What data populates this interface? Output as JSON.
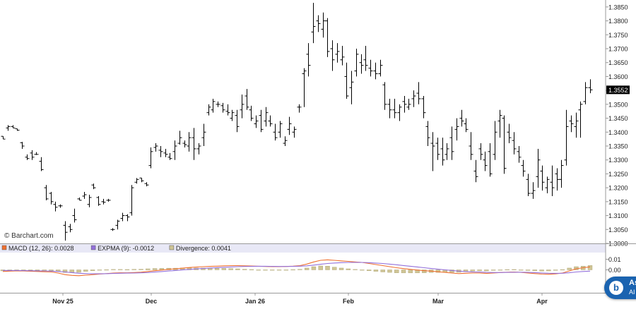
{
  "watermark": "© Barchart.com",
  "assistant_badge": {
    "line1": "As",
    "line2": "AI"
  },
  "chart_data": [
    {
      "type": "ohlc",
      "x_axis": {
        "labels": [
          "Nov 25",
          "Dec",
          "Jan 26",
          "Feb",
          "Mar",
          "Apr"
        ]
      },
      "y_axis": {
        "range": [
          1.3,
          1.3875
        ],
        "ticks": [
          "1.3000",
          "1.3050",
          "1.3100",
          "1.3150",
          "1.3200",
          "1.3250",
          "1.3300",
          "1.3350",
          "1.3400",
          "1.3450",
          "1.3500",
          "1.3550",
          "1.3600",
          "1.3650",
          "1.3700",
          "1.3750",
          "1.3800",
          "1.3850"
        ]
      },
      "last_price": {
        "value": 1.3552,
        "label": "1.3552"
      },
      "grid": false,
      "bars": [
        [
          1.3385,
          1.3385,
          1.3375,
          1.3375
        ],
        [
          1.3415,
          1.3425,
          1.3405,
          1.342
        ],
        [
          1.342,
          1.3425,
          1.3415,
          1.3415
        ],
        [
          1.3412,
          1.3412,
          1.3405,
          1.3407
        ],
        [
          1.3362,
          1.3365,
          1.334,
          1.335
        ],
        [
          1.331,
          1.332,
          1.33,
          1.3305
        ],
        [
          1.3325,
          1.3335,
          1.33,
          1.331
        ],
        [
          1.332,
          1.3328,
          1.3318,
          1.332
        ],
        [
          1.3295,
          1.331,
          1.326,
          1.3265
        ],
        [
          1.32,
          1.321,
          1.3155,
          1.316
        ],
        [
          1.318,
          1.3185,
          1.314,
          1.315
        ],
        [
          1.314,
          1.315,
          1.3115,
          1.313
        ],
        [
          1.3135,
          1.314,
          1.3128,
          1.3135
        ],
        [
          1.3065,
          1.308,
          1.301,
          1.304
        ],
        [
          1.306,
          1.307,
          1.304,
          1.305
        ],
        [
          1.31,
          1.3125,
          1.3075,
          1.3085
        ],
        [
          1.316,
          1.3165,
          1.3155,
          1.3155
        ],
        [
          1.317,
          1.3185,
          1.316,
          1.3175
        ],
        [
          1.314,
          1.3175,
          1.313,
          1.3165
        ],
        [
          1.321,
          1.3215,
          1.3195,
          1.32
        ],
        [
          1.3165,
          1.317,
          1.3135,
          1.314
        ],
        [
          1.315,
          1.316,
          1.314,
          1.3148
        ],
        [
          1.3155,
          1.316,
          1.315,
          1.3155
        ],
        [
          1.305,
          1.3055,
          1.3045,
          1.305
        ],
        [
          1.3065,
          1.3085,
          1.305,
          1.308
        ],
        [
          1.309,
          1.311,
          1.308,
          1.31
        ],
        [
          1.31,
          1.3105,
          1.308,
          1.3095
        ],
        [
          1.311,
          1.321,
          1.31,
          1.32
        ],
        [
          1.322,
          1.3235,
          1.3215,
          1.323
        ],
        [
          1.3235,
          1.3235,
          1.322,
          1.3225
        ],
        [
          1.3215,
          1.322,
          1.3205,
          1.321
        ],
        [
          1.328,
          1.3345,
          1.327,
          1.333
        ],
        [
          1.3345,
          1.336,
          1.333,
          1.335
        ],
        [
          1.3335,
          1.335,
          1.331,
          1.333
        ],
        [
          1.3325,
          1.334,
          1.331,
          1.332
        ],
        [
          1.331,
          1.3325,
          1.33,
          1.3305
        ],
        [
          1.333,
          1.337,
          1.33,
          1.335
        ],
        [
          1.336,
          1.3405,
          1.3355,
          1.338
        ],
        [
          1.336,
          1.337,
          1.3345,
          1.3355
        ],
        [
          1.335,
          1.34,
          1.333,
          1.338
        ],
        [
          1.338,
          1.3415,
          1.33,
          1.334
        ],
        [
          1.334,
          1.336,
          1.332,
          1.335
        ],
        [
          1.338,
          1.343,
          1.335,
          1.34
        ],
        [
          1.347,
          1.35,
          1.346,
          1.349
        ],
        [
          1.348,
          1.352,
          1.347,
          1.351
        ],
        [
          1.35,
          1.351,
          1.349,
          1.35
        ],
        [
          1.3495,
          1.3505,
          1.347,
          1.348
        ],
        [
          1.3475,
          1.35,
          1.346,
          1.347
        ],
        [
          1.345,
          1.348,
          1.344,
          1.347
        ],
        [
          1.346,
          1.348,
          1.34,
          1.342
        ],
        [
          1.348,
          1.3535,
          1.345,
          1.35
        ],
        [
          1.353,
          1.3555,
          1.348,
          1.349
        ],
        [
          1.348,
          1.3495,
          1.344,
          1.345
        ],
        [
          1.343,
          1.346,
          1.3415,
          1.344
        ],
        [
          1.346,
          1.348,
          1.34,
          1.341
        ],
        [
          1.344,
          1.349,
          1.342,
          1.347
        ],
        [
          1.344,
          1.346,
          1.342,
          1.343
        ],
        [
          1.34,
          1.343,
          1.337,
          1.338
        ],
        [
          1.34,
          1.344,
          1.338,
          1.343
        ],
        [
          1.336,
          1.3385,
          1.335,
          1.337
        ],
        [
          1.341,
          1.3455,
          1.339,
          1.343
        ],
        [
          1.34,
          1.342,
          1.338,
          1.341
        ],
        [
          1.349,
          1.35,
          1.347,
          1.349
        ],
        [
          1.361,
          1.363,
          1.349,
          1.362
        ],
        [
          1.368,
          1.372,
          1.36,
          1.364
        ],
        [
          1.376,
          1.3865,
          1.372,
          1.378
        ],
        [
          1.38,
          1.382,
          1.376,
          1.379
        ],
        [
          1.377,
          1.383,
          1.374,
          1.38
        ],
        [
          1.38,
          1.381,
          1.367,
          1.369
        ],
        [
          1.37,
          1.373,
          1.362,
          1.366
        ],
        [
          1.368,
          1.372,
          1.365,
          1.369
        ],
        [
          1.366,
          1.371,
          1.364,
          1.367
        ],
        [
          1.36,
          1.365,
          1.352,
          1.353
        ],
        [
          1.356,
          1.362,
          1.35,
          1.358
        ],
        [
          1.362,
          1.37,
          1.36,
          1.368
        ],
        [
          1.365,
          1.368,
          1.361,
          1.364
        ],
        [
          1.366,
          1.371,
          1.362,
          1.364
        ],
        [
          1.363,
          1.366,
          1.36,
          1.362
        ],
        [
          1.362,
          1.365,
          1.359,
          1.361
        ],
        [
          1.361,
          1.366,
          1.36,
          1.364
        ],
        [
          1.357,
          1.358,
          1.348,
          1.35
        ],
        [
          1.35,
          1.352,
          1.345,
          1.348
        ],
        [
          1.348,
          1.352,
          1.345,
          1.347
        ],
        [
          1.347,
          1.35,
          1.344,
          1.349
        ],
        [
          1.351,
          1.353,
          1.347,
          1.35
        ],
        [
          1.349,
          1.352,
          1.348,
          1.35
        ],
        [
          1.352,
          1.355,
          1.349,
          1.353
        ],
        [
          1.354,
          1.358,
          1.35,
          1.352
        ],
        [
          1.352,
          1.353,
          1.345,
          1.347
        ],
        [
          1.342,
          1.344,
          1.335,
          1.338
        ],
        [
          1.336,
          1.34,
          1.326,
          1.335
        ],
        [
          1.336,
          1.338,
          1.33,
          1.332
        ],
        [
          1.334,
          1.338,
          1.328,
          1.33
        ],
        [
          1.332,
          1.336,
          1.33,
          1.334
        ],
        [
          1.338,
          1.342,
          1.33,
          1.333
        ],
        [
          1.341,
          1.345,
          1.337,
          1.342
        ],
        [
          1.345,
          1.348,
          1.342,
          1.344
        ],
        [
          1.343,
          1.345,
          1.34,
          1.341
        ],
        [
          1.335,
          1.34,
          1.33,
          1.332
        ],
        [
          1.326,
          1.33,
          1.322,
          1.324
        ],
        [
          1.334,
          1.336,
          1.33,
          1.332
        ],
        [
          1.33,
          1.333,
          1.326,
          1.328
        ],
        [
          1.333,
          1.336,
          1.324,
          1.325
        ],
        [
          1.332,
          1.344,
          1.33,
          1.34
        ],
        [
          1.344,
          1.348,
          1.338,
          1.346
        ],
        [
          1.345,
          1.346,
          1.325,
          1.327
        ],
        [
          1.34,
          1.343,
          1.336,
          1.338
        ],
        [
          1.337,
          1.34,
          1.332,
          1.334
        ],
        [
          1.333,
          1.335,
          1.329,
          1.331
        ],
        [
          1.328,
          1.33,
          1.324,
          1.326
        ],
        [
          1.323,
          1.325,
          1.317,
          1.318
        ],
        [
          1.318,
          1.322,
          1.316,
          1.319
        ],
        [
          1.324,
          1.334,
          1.32,
          1.33
        ],
        [
          1.326,
          1.328,
          1.319,
          1.322
        ],
        [
          1.32,
          1.324,
          1.318,
          1.323
        ],
        [
          1.322,
          1.328,
          1.317,
          1.32
        ],
        [
          1.325,
          1.327,
          1.319,
          1.323
        ],
        [
          1.323,
          1.33,
          1.32,
          1.328
        ],
        [
          1.33,
          1.348,
          1.328,
          1.342
        ],
        [
          1.344,
          1.346,
          1.34,
          1.343
        ],
        [
          1.342,
          1.347,
          1.338,
          1.344
        ],
        [
          1.348,
          1.351,
          1.338,
          1.35
        ],
        [
          1.351,
          1.358,
          1.35,
          1.356
        ],
        [
          1.356,
          1.359,
          1.354,
          1.3552
        ]
      ]
    },
    {
      "type": "line",
      "legend": [
        {
          "label": "MACD (12, 26): 0.0028",
          "color": "#ef7030"
        },
        {
          "label": "EXPMA (9): -0.0012",
          "color": "#9370db"
        },
        {
          "label": "Divergence: 0.0041",
          "color": "#cfc596"
        }
      ],
      "y_axis": {
        "range": [
          -0.015,
          0.015
        ],
        "ticks": [
          "0.01",
          "0.00"
        ]
      },
      "series": [
        {
          "name": "MACD (12, 26)",
          "color": "#ef7030",
          "values": [
            -0.0015,
            -0.0012,
            -0.001,
            -0.0011,
            -0.0013,
            -0.0015,
            -0.0018,
            -0.002,
            -0.003,
            -0.0045,
            -0.0052,
            -0.0055,
            -0.005,
            -0.0045,
            -0.004,
            -0.0035,
            -0.003,
            -0.0028,
            -0.0028,
            -0.0025,
            -0.0022,
            -0.0015,
            -0.0008,
            -0.0002,
            0.0005,
            0.001,
            0.0016,
            0.0022,
            0.0026,
            0.003,
            0.0033,
            0.0035,
            0.0038,
            0.004,
            0.004,
            0.0038,
            0.0036,
            0.0034,
            0.0032,
            0.003,
            0.003,
            0.0032,
            0.0035,
            0.004,
            0.0055,
            0.0075,
            0.009,
            0.0095,
            0.009,
            0.0085,
            0.008,
            0.0075,
            0.007,
            0.006,
            0.005,
            0.004,
            0.003,
            0.002,
            0.0012,
            0.0005,
            -0.0002,
            -0.0008,
            -0.0012,
            -0.0018,
            -0.0024,
            -0.003,
            -0.0035,
            -0.0032,
            -0.003,
            -0.003,
            -0.0034,
            -0.003,
            -0.0025,
            -0.0022,
            -0.002,
            -0.0024,
            -0.003,
            -0.0035,
            -0.004,
            -0.0042,
            -0.0038,
            -0.003,
            -0.001,
            0.001,
            0.002,
            0.0028
          ]
        },
        {
          "name": "EXPMA (9)",
          "color": "#9370db",
          "values": [
            -0.0005,
            -0.0006,
            -0.0006,
            -0.0007,
            -0.0008,
            -0.0009,
            -0.001,
            -0.0012,
            -0.0015,
            -0.002,
            -0.0026,
            -0.0032,
            -0.0035,
            -0.0037,
            -0.0037,
            -0.0036,
            -0.0034,
            -0.0032,
            -0.0031,
            -0.003,
            -0.0028,
            -0.0025,
            -0.0021,
            -0.0016,
            -0.0011,
            -0.0006,
            -0.0001,
            0.0004,
            0.0009,
            0.0013,
            0.0017,
            0.0021,
            0.0024,
            0.0027,
            0.003,
            0.0032,
            0.0033,
            0.0034,
            0.0034,
            0.0033,
            0.0032,
            0.0032,
            0.0033,
            0.0035,
            0.0038,
            0.0045,
            0.0053,
            0.006,
            0.0065,
            0.0068,
            0.007,
            0.0071,
            0.007,
            0.0068,
            0.0064,
            0.006,
            0.0054,
            0.0048,
            0.0041,
            0.0034,
            0.0027,
            0.002,
            0.0013,
            0.0006,
            0.0,
            -0.0006,
            -0.0012,
            -0.0016,
            -0.0019,
            -0.0021,
            -0.0024,
            -0.0025,
            -0.0025,
            -0.0024,
            -0.0023,
            -0.0023,
            -0.0024,
            -0.0026,
            -0.0029,
            -0.0032,
            -0.0033,
            -0.0032,
            -0.0027,
            -0.002,
            -0.0015,
            -0.0012
          ]
        },
        {
          "name": "Divergence",
          "color": "#cfc596",
          "type": "bar",
          "values": [
            -0.001,
            -0.0006,
            -0.0004,
            -0.0004,
            -0.0005,
            -0.0006,
            -0.0008,
            -0.0008,
            -0.0015,
            -0.0025,
            -0.0026,
            -0.0023,
            -0.0015,
            -0.0008,
            -0.0003,
            0.0001,
            0.0004,
            0.0004,
            0.0003,
            0.0005,
            0.0006,
            0.001,
            0.0013,
            0.0014,
            0.0016,
            0.0016,
            0.0017,
            0.0018,
            0.0017,
            0.0017,
            0.0016,
            0.0014,
            0.0014,
            0.0013,
            0.001,
            0.0006,
            0.0003,
            0.0,
            -0.0002,
            -0.0003,
            -0.0002,
            0.0,
            0.0002,
            0.0005,
            0.0017,
            0.003,
            0.0037,
            0.0035,
            0.0025,
            0.0017,
            0.001,
            0.0004,
            0.0,
            -0.0008,
            -0.0014,
            -0.002,
            -0.0024,
            -0.0028,
            -0.0029,
            -0.0029,
            -0.0029,
            -0.0028,
            -0.0025,
            -0.0024,
            -0.0024,
            -0.0024,
            -0.0023,
            -0.0016,
            -0.0011,
            -0.0009,
            -0.001,
            -0.0005,
            0.0,
            0.0002,
            0.0003,
            -0.0001,
            -0.0006,
            -0.0009,
            -0.0011,
            -0.001,
            -0.0005,
            0.0002,
            0.0017,
            0.003,
            0.0035,
            0.0041
          ]
        }
      ]
    }
  ]
}
